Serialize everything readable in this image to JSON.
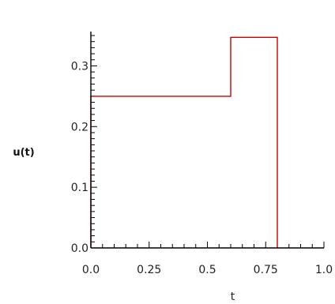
{
  "chart_data": {
    "type": "line",
    "xlabel": "t",
    "ylabel": "u(t)",
    "xlim": [
      0.0,
      1.0
    ],
    "ylim": [
      0.0,
      0.35
    ],
    "grid": false,
    "x_ticks": [
      0.0,
      0.25,
      0.5,
      0.75,
      1.0
    ],
    "x_tick_labels": [
      "0.0",
      "0.25",
      "0.5",
      "0.75",
      "1.0"
    ],
    "y_ticks": [
      0.0,
      0.1,
      0.2,
      0.3
    ],
    "y_tick_labels": [
      "0.0",
      "0.1",
      "0.2",
      "0.3"
    ],
    "series": [
      {
        "color": "#cc0000",
        "points": [
          {
            "x": 0.0,
            "y": 0.0
          },
          {
            "x": 0.0,
            "y": 0.25
          },
          {
            "x": 0.6,
            "y": 0.25
          },
          {
            "x": 0.6,
            "y": 0.347
          },
          {
            "x": 0.8,
            "y": 0.347
          },
          {
            "x": 0.8,
            "y": 0.0
          }
        ]
      }
    ]
  }
}
